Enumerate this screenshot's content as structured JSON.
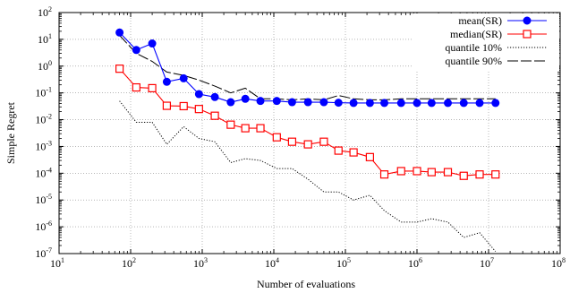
{
  "chart_data": {
    "type": "line",
    "xlabel": "Number of evaluations",
    "ylabel": "Simple Regret",
    "xscale": "log",
    "yscale": "log",
    "xlim": [
      10,
      100000000
    ],
    "ylim": [
      1e-07,
      100
    ],
    "x_tick_exponents": [
      1,
      2,
      3,
      4,
      5,
      6,
      7,
      8
    ],
    "y_tick_exponents": [
      -7,
      -6,
      -5,
      -4,
      -3,
      -2,
      -1,
      0,
      1,
      2
    ],
    "tick_base": "10",
    "grid": true,
    "legend_position": "top-right",
    "series": [
      {
        "name": "mean(SR)",
        "color": "#0000ff",
        "line_style": "solid",
        "marker": "filled-circle",
        "x": [
          70,
          120,
          200,
          320,
          550,
          900,
          1500,
          2500,
          4000,
          6500,
          11000,
          18000,
          30000,
          50000,
          80000,
          130000,
          220000,
          350000,
          600000,
          1000000,
          1600000,
          2700000,
          4500000,
          7500000,
          12500000
        ],
        "y": [
          18,
          4,
          7,
          0.26,
          0.35,
          0.09,
          0.07,
          0.045,
          0.06,
          0.05,
          0.05,
          0.045,
          0.045,
          0.045,
          0.043,
          0.042,
          0.042,
          0.042,
          0.042,
          0.042,
          0.042,
          0.042,
          0.042,
          0.042,
          0.042
        ]
      },
      {
        "name": "median(SR)",
        "color": "#ff0000",
        "line_style": "solid",
        "marker": "open-square",
        "x": [
          70,
          120,
          200,
          320,
          550,
          900,
          1500,
          2500,
          4000,
          6500,
          11000,
          18000,
          30000,
          50000,
          80000,
          130000,
          220000,
          350000,
          600000,
          1000000,
          1600000,
          2700000,
          4500000,
          7500000,
          12500000
        ],
        "y": [
          0.8,
          0.16,
          0.15,
          0.033,
          0.032,
          0.025,
          0.014,
          0.0065,
          0.0048,
          0.0048,
          0.0022,
          0.0015,
          0.0012,
          0.0015,
          0.0007,
          0.0006,
          0.0004,
          9e-05,
          0.00012,
          0.00012,
          0.00011,
          0.00011,
          8e-05,
          9e-05,
          9e-05
        ]
      },
      {
        "name": "quantile 10%",
        "color": "#000000",
        "line_style": "dotted",
        "marker": "none",
        "x": [
          70,
          120,
          200,
          320,
          550,
          900,
          1500,
          2500,
          4000,
          6500,
          11000,
          18000,
          30000,
          50000,
          80000,
          130000,
          220000,
          350000,
          600000,
          1000000,
          1600000,
          2700000,
          4500000,
          7500000,
          12500000
        ],
        "y": [
          0.05,
          0.008,
          0.008,
          0.0012,
          0.0055,
          0.002,
          0.0015,
          0.00025,
          0.00035,
          0.0003,
          0.00015,
          0.00015,
          6e-05,
          2e-05,
          2e-05,
          1e-05,
          1.5e-05,
          4e-06,
          1.5e-06,
          1.5e-06,
          2e-06,
          1.5e-06,
          4e-07,
          6e-07,
          1.2e-07
        ]
      },
      {
        "name": "quantile 90%",
        "color": "#000000",
        "line_style": "dashed",
        "marker": "none",
        "x": [
          70,
          120,
          200,
          320,
          550,
          900,
          1500,
          2500,
          4000,
          6500,
          11000,
          18000,
          30000,
          50000,
          80000,
          130000,
          220000,
          350000,
          600000,
          1000000,
          1600000,
          2700000,
          4500000,
          7500000,
          12500000
        ],
        "y": [
          14,
          3,
          1.5,
          0.6,
          0.45,
          0.3,
          0.18,
          0.1,
          0.15,
          0.06,
          0.06,
          0.055,
          0.06,
          0.055,
          0.08,
          0.06,
          0.055,
          0.055,
          0.06,
          0.06,
          0.06,
          0.06,
          0.06,
          0.06,
          0.06
        ]
      }
    ]
  }
}
